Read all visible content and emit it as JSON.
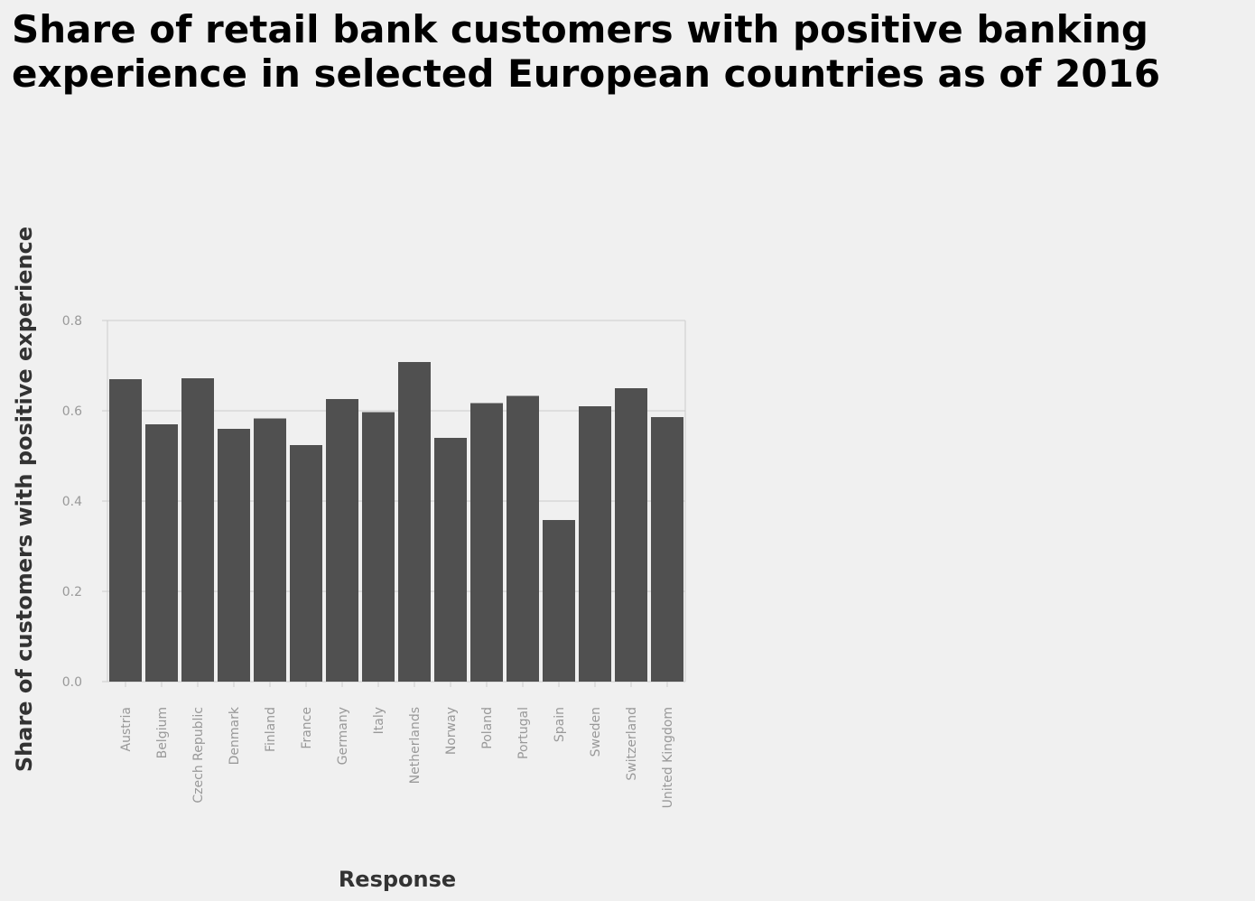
{
  "chart_data": {
    "type": "bar",
    "title": "Share of retail bank customers with positive banking experience in selected European countries as of 2016",
    "xlabel": "Response",
    "ylabel": "Share of customers with positive experience",
    "categories": [
      "Austria",
      "Belgium",
      "Czech Republic",
      "Denmark",
      "Finland",
      "France",
      "Germany",
      "Italy",
      "Netherlands",
      "Norway",
      "Poland",
      "Portugal",
      "Spain",
      "Sweden",
      "Switzerland",
      "United Kingdom"
    ],
    "values": [
      0.67,
      0.57,
      0.672,
      0.56,
      0.583,
      0.524,
      0.626,
      0.597,
      0.708,
      0.54,
      0.617,
      0.633,
      0.358,
      0.61,
      0.65,
      0.586
    ],
    "ylim": [
      0,
      0.8
    ],
    "yticks": [
      "0.0",
      "0.2",
      "0.4",
      "0.6",
      "0.8"
    ],
    "grid": true,
    "colors": {
      "bar": "#505050",
      "grid": "#cccccc",
      "background": "#f0f0f0"
    }
  }
}
